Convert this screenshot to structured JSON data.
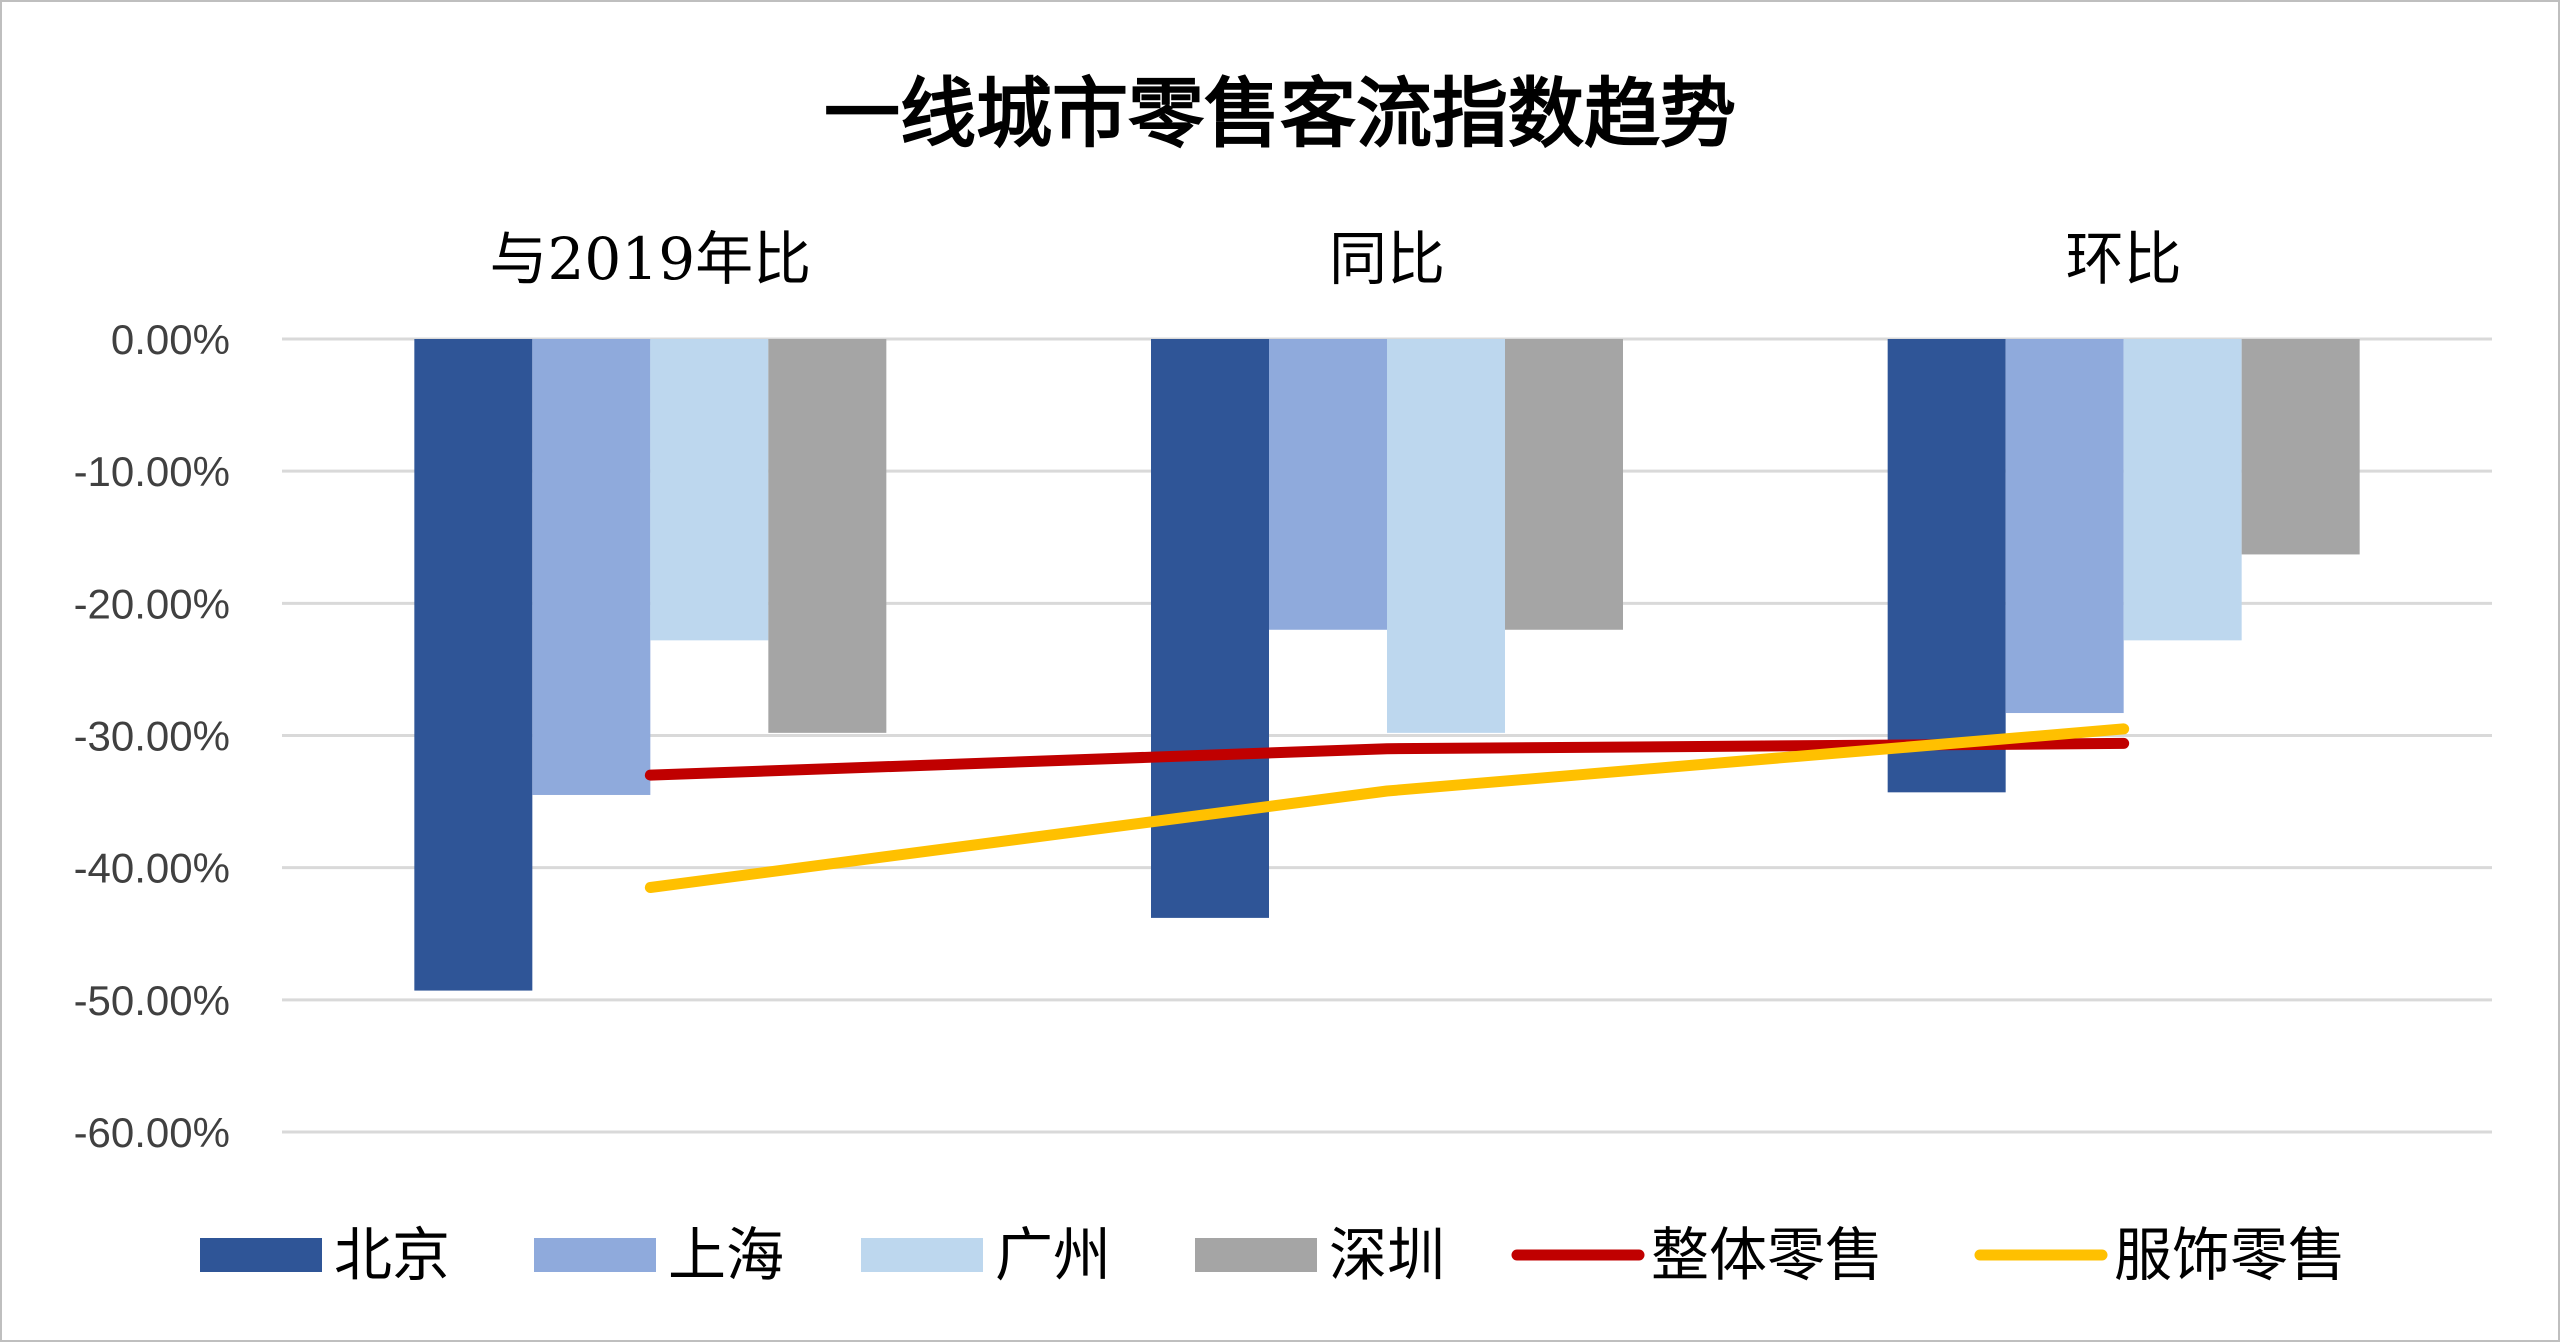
{
  "chart_data": {
    "type": "bar",
    "title": "一线城市零售客流指数趋势",
    "categories": [
      "与2019年比",
      "同比",
      "环比"
    ],
    "ylim": [
      -0.6,
      0
    ],
    "yticks": [
      0,
      -0.1,
      -0.2,
      -0.3,
      -0.4,
      -0.5,
      -0.6
    ],
    "ytick_labels": [
      "0.00%",
      "-10.00%",
      "-20.00%",
      "-30.00%",
      "-40.00%",
      "-50.00%",
      "-60.00%"
    ],
    "grid": true,
    "category_labels_position": "top",
    "legend_position": "bottom",
    "series": [
      {
        "name": "北京",
        "kind": "bar",
        "color": "#2F5597",
        "values": [
          -0.493,
          -0.438,
          -0.343
        ]
      },
      {
        "name": "上海",
        "kind": "bar",
        "color": "#8FAADC",
        "values": [
          -0.345,
          -0.22,
          -0.283
        ]
      },
      {
        "name": "广州",
        "kind": "bar",
        "color": "#BDD7EE",
        "values": [
          -0.228,
          -0.298,
          -0.228
        ]
      },
      {
        "name": "深圳",
        "kind": "bar",
        "color": "#A5A5A5",
        "values": [
          -0.298,
          -0.22,
          -0.163
        ]
      },
      {
        "name": "整体零售",
        "kind": "line",
        "color": "#C00000",
        "values": [
          -0.33,
          -0.31,
          -0.306
        ]
      },
      {
        "name": "服饰零售",
        "kind": "line",
        "color": "#FFC000",
        "values": [
          -0.415,
          -0.342,
          -0.295
        ]
      }
    ]
  }
}
